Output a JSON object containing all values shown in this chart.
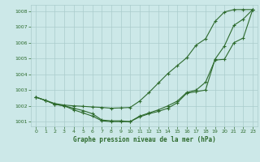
{
  "title": "Graphe pression niveau de la mer (hPa)",
  "background_color": "#cce8e8",
  "grid_color": "#aacccc",
  "line_color": "#2d6a2d",
  "xlim": [
    -0.5,
    23.5
  ],
  "ylim": [
    1000.7,
    1008.4
  ],
  "yticks": [
    1001,
    1002,
    1003,
    1004,
    1005,
    1006,
    1007,
    1008
  ],
  "xticks": [
    0,
    1,
    2,
    3,
    4,
    5,
    6,
    7,
    8,
    9,
    10,
    11,
    12,
    13,
    14,
    15,
    16,
    17,
    18,
    19,
    20,
    21,
    22,
    23
  ],
  "line1_x": [
    0,
    1,
    2,
    3,
    4,
    5,
    6,
    7,
    8,
    9,
    10,
    11,
    12,
    13,
    14,
    15,
    16,
    17,
    18,
    19,
    20,
    21,
    22,
    23
  ],
  "line1_y": [
    1002.55,
    1002.35,
    1002.1,
    1002.0,
    1001.75,
    1001.55,
    1001.35,
    1001.05,
    1001.0,
    1001.0,
    1001.0,
    1001.3,
    1001.5,
    1001.65,
    1001.85,
    1002.2,
    1002.8,
    1002.9,
    1003.0,
    1004.95,
    1005.8,
    1007.1,
    1007.5,
    1008.1
  ],
  "line2_x": [
    0,
    1,
    2,
    3,
    4,
    5,
    6,
    7,
    8,
    9,
    10,
    11,
    12,
    13,
    14,
    15,
    16,
    17,
    18,
    19,
    20,
    21,
    22,
    23
  ],
  "line2_y": [
    1002.55,
    1002.35,
    1002.1,
    1002.0,
    1001.85,
    1001.7,
    1001.5,
    1001.1,
    1001.05,
    1001.05,
    1001.0,
    1001.35,
    1001.55,
    1001.75,
    1002.0,
    1002.3,
    1002.85,
    1003.0,
    1003.5,
    1004.9,
    1004.95,
    1006.0,
    1006.3,
    1008.1
  ],
  "line3_x": [
    0,
    1,
    2,
    3,
    4,
    5,
    6,
    7,
    8,
    9,
    10,
    11,
    12,
    13,
    14,
    15,
    16,
    17,
    18,
    19,
    20,
    21,
    22,
    23
  ],
  "line3_y": [
    1002.55,
    1002.35,
    1002.15,
    1002.05,
    1002.0,
    1001.97,
    1001.93,
    1001.9,
    1001.85,
    1001.87,
    1001.9,
    1002.3,
    1002.85,
    1003.45,
    1004.05,
    1004.55,
    1005.05,
    1005.85,
    1006.25,
    1007.35,
    1007.95,
    1008.1,
    1008.1,
    1008.1
  ]
}
